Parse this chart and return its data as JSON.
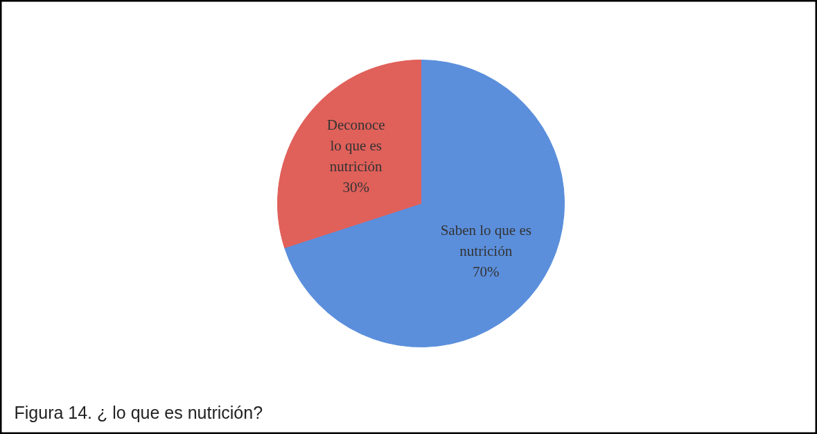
{
  "chart_data": {
    "type": "pie",
    "categories": [
      "Saben lo que es nutrición",
      "Deconoce lo que es nutrición"
    ],
    "values": [
      70,
      30
    ],
    "colors": [
      "#5b8fdc",
      "#e0605a"
    ],
    "value_labels": [
      "70%",
      "30%"
    ],
    "annotations": [
      "Figura 14. ¿ lo que es nutrición?"
    ]
  }
}
